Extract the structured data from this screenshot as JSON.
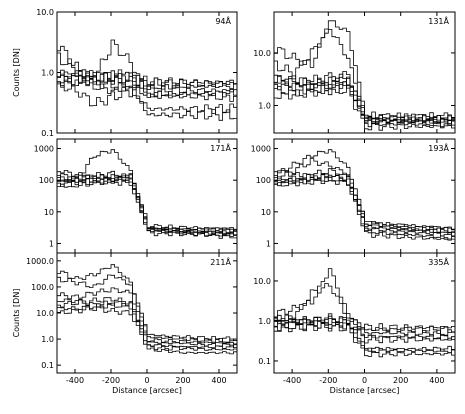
{
  "figure": {
    "panels_layout": "3 rows x 2 columns",
    "shared_xlabel": "Distance [arcsec]"
  },
  "chart_data": [
    {
      "type": "line",
      "wavelength_label": "94Å",
      "ylabel": "Counts [DN]",
      "yscale": "log",
      "ylim": [
        0.1,
        10.0
      ],
      "xlim": [
        -500,
        500
      ],
      "yticks": [
        0.1,
        1.0,
        10.0
      ],
      "ytick_labels": [
        "0.1",
        "1.0",
        "10.0"
      ],
      "xticks": [
        -400,
        -200,
        0,
        200,
        400
      ],
      "xtick_labels": [],
      "step_x": 20,
      "x": [
        -500,
        -400,
        -300,
        -200,
        -100,
        0,
        100,
        200,
        300,
        400,
        500
      ],
      "series": [
        {
          "values": [
            2.8,
            1.2,
            0.6,
            0.5,
            0.55,
            0.2,
            0.2,
            0.2,
            0.2,
            0.2,
            0.2
          ]
        },
        {
          "values": [
            1.8,
            1.1,
            0.7,
            0.6,
            0.6,
            0.25,
            0.25,
            0.25,
            0.25,
            0.25,
            0.25
          ]
        },
        {
          "values": [
            0.9,
            0.8,
            0.8,
            3.0,
            1.5,
            0.4,
            0.4,
            0.4,
            0.4,
            0.4,
            0.4
          ]
        },
        {
          "values": [
            0.7,
            0.7,
            0.8,
            0.9,
            0.9,
            0.45,
            0.45,
            0.45,
            0.45,
            0.45,
            0.45
          ]
        },
        {
          "values": [
            0.8,
            0.8,
            0.85,
            0.85,
            0.85,
            0.6,
            0.6,
            0.6,
            0.6,
            0.6,
            0.6
          ]
        },
        {
          "values": [
            0.75,
            0.75,
            0.75,
            0.8,
            0.8,
            0.7,
            0.7,
            0.7,
            0.7,
            0.7,
            0.7
          ]
        },
        {
          "values": [
            0.6,
            0.5,
            0.3,
            0.4,
            0.5,
            0.5,
            0.5,
            0.5,
            0.5,
            0.5,
            0.5
          ]
        },
        {
          "values": [
            0.9,
            1.0,
            0.9,
            0.8,
            0.7,
            0.65,
            0.65,
            0.65,
            0.65,
            0.65,
            0.65
          ]
        }
      ]
    },
    {
      "type": "line",
      "wavelength_label": "131Å",
      "ylabel": "",
      "yscale": "log",
      "ylim": [
        0.3,
        60
      ],
      "xlim": [
        -500,
        500
      ],
      "yticks": [
        1.0,
        10.0
      ],
      "ytick_labels": [
        "1.0",
        "10.0"
      ],
      "xticks": [
        -400,
        -200,
        0,
        200,
        400
      ],
      "xtick_labels": [],
      "step_x": 20,
      "x": [
        -500,
        -400,
        -300,
        -200,
        -100,
        0,
        100,
        200,
        300,
        400,
        500
      ],
      "series": [
        {
          "values": [
            12,
            8,
            6,
            40,
            25,
            0.6,
            0.6,
            0.6,
            0.6,
            0.6,
            0.6
          ]
        },
        {
          "values": [
            6,
            4,
            10,
            30,
            8,
            0.55,
            0.55,
            0.55,
            0.55,
            0.55,
            0.55
          ]
        },
        {
          "values": [
            3,
            3,
            2.5,
            3,
            4,
            0.5,
            0.5,
            0.5,
            0.5,
            0.5,
            0.5
          ]
        },
        {
          "values": [
            2.5,
            2.2,
            2,
            2.5,
            3,
            0.45,
            0.45,
            0.45,
            0.45,
            0.45,
            0.45
          ]
        },
        {
          "values": [
            2,
            1.8,
            2.2,
            2,
            2.5,
            0.5,
            0.5,
            0.5,
            0.5,
            0.5,
            0.5
          ]
        },
        {
          "values": [
            1.5,
            1.6,
            1.8,
            2,
            2,
            0.4,
            0.4,
            0.4,
            0.4,
            0.4,
            0.4
          ]
        },
        {
          "values": [
            3.5,
            3,
            3,
            3.5,
            3,
            0.55,
            0.55,
            0.55,
            0.55,
            0.55,
            0.55
          ]
        },
        {
          "values": [
            2.8,
            2.5,
            2.6,
            2.4,
            2.8,
            0.6,
            0.6,
            0.6,
            0.6,
            0.6,
            0.6
          ]
        }
      ]
    },
    {
      "type": "line",
      "wavelength_label": "171Å",
      "ylabel": "",
      "yscale": "log",
      "ylim": [
        0.5,
        2000
      ],
      "xlim": [
        -500,
        500
      ],
      "yticks": [
        1,
        10,
        100,
        1000
      ],
      "ytick_labels": [
        "1",
        "10",
        "100",
        "1000"
      ],
      "xticks": [
        -400,
        -200,
        0,
        200,
        400
      ],
      "xtick_labels": [],
      "step_x": 20,
      "x": [
        -500,
        -400,
        -300,
        -200,
        -100,
        0,
        100,
        200,
        300,
        400,
        500
      ],
      "series": [
        {
          "values": [
            150,
            100,
            600,
            900,
            200,
            3,
            2.5,
            2.2,
            2,
            1.8,
            1.7
          ]
        },
        {
          "values": [
            120,
            90,
            80,
            100,
            150,
            3,
            2.8,
            2.6,
            2.5,
            2.4,
            2.3
          ]
        },
        {
          "values": [
            100,
            110,
            120,
            130,
            120,
            3.2,
            3,
            2.9,
            2.8,
            2.7,
            2.6
          ]
        },
        {
          "values": [
            80,
            70,
            90,
            110,
            100,
            2.5,
            2.3,
            2.2,
            2.1,
            2,
            2
          ]
        },
        {
          "values": [
            60,
            80,
            100,
            90,
            80,
            2.8,
            2.6,
            2.5,
            2.4,
            2.3,
            2.2
          ]
        },
        {
          "values": [
            200,
            150,
            120,
            100,
            130,
            3.5,
            3.3,
            3.2,
            3.1,
            3,
            3
          ]
        },
        {
          "values": [
            90,
            120,
            140,
            160,
            110,
            2.2,
            2.1,
            2,
            1.9,
            1.8,
            1.7
          ]
        }
      ]
    },
    {
      "type": "line",
      "wavelength_label": "193Å",
      "ylabel": "",
      "yscale": "log",
      "ylim": [
        0.5,
        2000
      ],
      "xlim": [
        -500,
        500
      ],
      "yticks": [
        1,
        10,
        100,
        1000
      ],
      "ytick_labels": [
        "1",
        "10",
        "100",
        "1000"
      ],
      "xticks": [
        -400,
        -200,
        0,
        200,
        400
      ],
      "xtick_labels": [],
      "step_x": 20,
      "x": [
        -500,
        -400,
        -300,
        -200,
        -100,
        0,
        100,
        200,
        300,
        400,
        500
      ],
      "series": [
        {
          "values": [
            150,
            300,
            600,
            900,
            250,
            5,
            4,
            3.5,
            3,
            2.8,
            2.5
          ]
        },
        {
          "values": [
            120,
            200,
            400,
            300,
            150,
            4,
            3.5,
            3,
            2.8,
            2.6,
            2.5
          ]
        },
        {
          "values": [
            100,
            110,
            150,
            200,
            130,
            3.5,
            3,
            2.8,
            2.6,
            2.4,
            2.3
          ]
        },
        {
          "values": [
            80,
            90,
            100,
            150,
            100,
            3,
            2.6,
            2.4,
            2.2,
            2,
            1.8
          ]
        },
        {
          "values": [
            70,
            80,
            90,
            100,
            80,
            2.5,
            2.2,
            2,
            1.8,
            1.6,
            1.5
          ]
        },
        {
          "values": [
            200,
            150,
            130,
            120,
            110,
            4.5,
            4,
            3.8,
            3.5,
            3.3,
            3
          ]
        },
        {
          "values": [
            90,
            100,
            110,
            120,
            90,
            2,
            1.8,
            1.6,
            1.5,
            1.4,
            1.3
          ]
        }
      ]
    },
    {
      "type": "line",
      "wavelength_label": "211Å",
      "ylabel": "Counts [DN]",
      "yscale": "log",
      "ylim": [
        0.05,
        2000
      ],
      "xlim": [
        -500,
        500
      ],
      "yticks": [
        0.1,
        1.0,
        10.0,
        100.0,
        1000.0
      ],
      "ytick_labels": [
        "0.1",
        "1.0",
        "10.0",
        "100.0",
        "1000.0"
      ],
      "xticks": [
        -400,
        -200,
        0,
        200,
        400
      ],
      "xtick_labels": [
        "-400",
        "-200",
        "0",
        "200",
        "400"
      ],
      "xlabel": "Distance [arcsec]",
      "step_x": 20,
      "x": [
        -500,
        -400,
        -300,
        -200,
        -100,
        0,
        100,
        200,
        300,
        400,
        500
      ],
      "series": [
        {
          "values": [
            400,
            200,
            300,
            700,
            150,
            1.5,
            1.3,
            1.2,
            1.1,
            1.0,
            1.0
          ]
        },
        {
          "values": [
            200,
            150,
            100,
            300,
            120,
            1.2,
            1.1,
            1.0,
            0.9,
            0.9,
            0.8
          ]
        },
        {
          "values": [
            50,
            40,
            60,
            80,
            60,
            0.8,
            0.7,
            0.7,
            0.6,
            0.6,
            0.6
          ]
        },
        {
          "values": [
            20,
            25,
            30,
            35,
            25,
            0.6,
            0.55,
            0.5,
            0.5,
            0.5,
            0.5
          ]
        },
        {
          "values": [
            10,
            12,
            15,
            12,
            10,
            0.4,
            0.35,
            0.3,
            0.3,
            0.3,
            0.3
          ]
        },
        {
          "values": [
            30,
            30,
            20,
            25,
            20,
            0.9,
            0.85,
            0.8,
            0.75,
            0.7,
            0.7
          ]
        },
        {
          "values": [
            15,
            15,
            18,
            20,
            18,
            0.5,
            0.45,
            0.45,
            0.4,
            0.4,
            0.4
          ]
        }
      ]
    },
    {
      "type": "line",
      "wavelength_label": "335Å",
      "ylabel": "",
      "yscale": "log",
      "ylim": [
        0.05,
        50
      ],
      "xlim": [
        -500,
        500
      ],
      "yticks": [
        0.1,
        1.0,
        10.0
      ],
      "ytick_labels": [
        "0.1",
        "1.0",
        "10.0"
      ],
      "xticks": [
        -400,
        -200,
        0,
        200,
        400
      ],
      "xtick_labels": [
        "-400",
        "-200",
        "0",
        "200",
        "400"
      ],
      "xlabel": "Distance [arcsec]",
      "step_x": 20,
      "x": [
        -500,
        -400,
        -300,
        -200,
        -100,
        0,
        100,
        200,
        300,
        400,
        500
      ],
      "series": [
        {
          "values": [
            1.5,
            2.0,
            3.0,
            20,
            1.5,
            0.6,
            0.6,
            0.6,
            0.6,
            0.6,
            0.6
          ]
        },
        {
          "values": [
            1.0,
            1.2,
            5.0,
            8.0,
            1.2,
            0.5,
            0.5,
            0.5,
            0.5,
            0.5,
            0.5
          ]
        },
        {
          "values": [
            0.8,
            0.9,
            1.0,
            1.0,
            0.9,
            0.4,
            0.4,
            0.4,
            0.4,
            0.4,
            0.4
          ]
        },
        {
          "values": [
            0.7,
            0.75,
            0.8,
            0.8,
            0.75,
            0.2,
            0.2,
            0.2,
            0.2,
            0.2,
            0.2
          ]
        },
        {
          "values": [
            1.2,
            1.1,
            1.0,
            1.2,
            1.0,
            0.18,
            0.18,
            0.18,
            0.18,
            0.18,
            0.18
          ]
        },
        {
          "values": [
            0.6,
            0.65,
            0.7,
            0.7,
            0.65,
            0.15,
            0.15,
            0.15,
            0.15,
            0.15,
            0.15
          ]
        },
        {
          "values": [
            0.9,
            0.95,
            1.0,
            1.1,
            1.0,
            0.7,
            0.7,
            0.7,
            0.7,
            0.7,
            0.7
          ]
        },
        {
          "values": [
            1.1,
            1.0,
            0.9,
            0.9,
            0.85,
            0.35,
            0.35,
            0.35,
            0.35,
            0.35,
            0.35
          ]
        }
      ]
    }
  ]
}
